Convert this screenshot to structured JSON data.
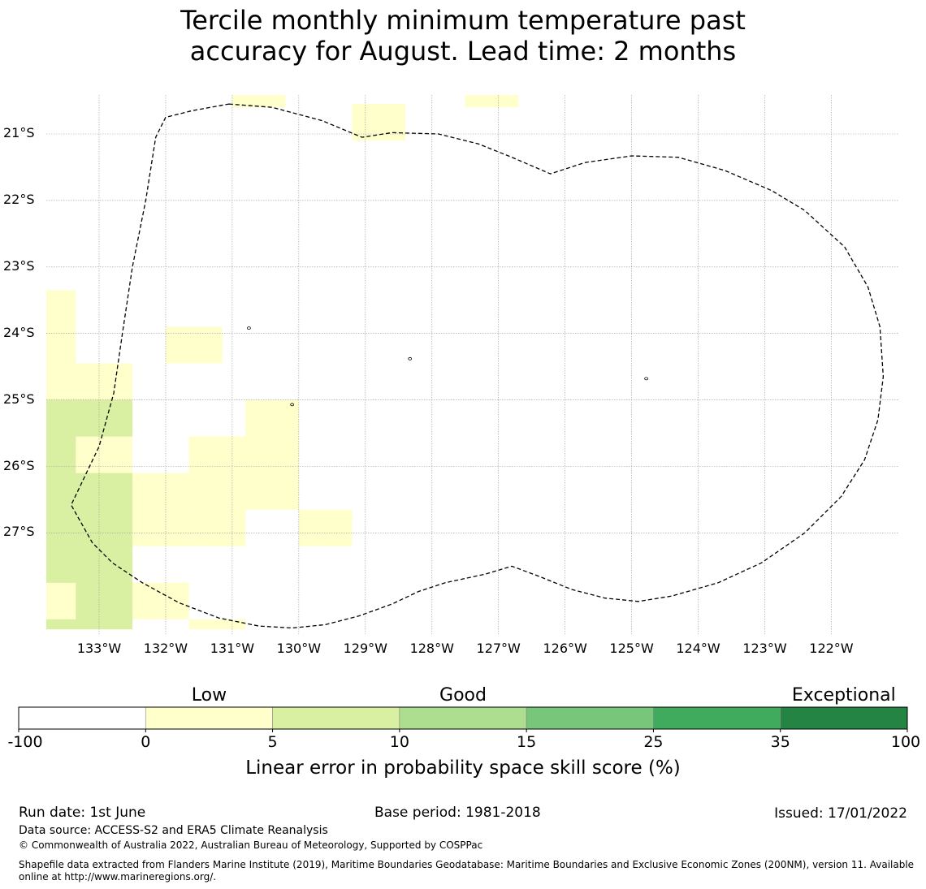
{
  "title": {
    "line1": "Tercile monthly minimum temperature past",
    "line2": "accuracy for August. Lead time: 2 months"
  },
  "map": {
    "latitude_labels": [
      "21°S",
      "22°S",
      "23°S",
      "24°S",
      "25°S",
      "26°S",
      "27°S"
    ],
    "longitude_labels": [
      "133°W",
      "132°W",
      "131°W",
      "130°W",
      "129°W",
      "128°W",
      "127°W",
      "126°W",
      "125°W",
      "124°W",
      "123°W",
      "122°W"
    ],
    "cells": [
      {
        "lon": [
          -131.0,
          -130.2
        ],
        "lat": [
          -20.6,
          -20.2
        ],
        "value": 2.5
      },
      {
        "lon": [
          -129.2,
          -128.4
        ],
        "lat": [
          -21.1,
          -20.55
        ],
        "value": 2.5
      },
      {
        "lon": [
          -127.5,
          -126.7
        ],
        "lat": [
          -20.6,
          -20.2
        ],
        "value": 2.5
      },
      {
        "lon": [
          -133.8,
          -133.35
        ],
        "lat": [
          -24.45,
          -23.35
        ],
        "value": 2.5
      },
      {
        "lon": [
          -133.8,
          -132.5
        ],
        "lat": [
          -25.0,
          -24.45
        ],
        "value": 2.5
      },
      {
        "lon": [
          -132.0,
          -131.15
        ],
        "lat": [
          -24.45,
          -23.9
        ],
        "value": 2.5
      },
      {
        "lon": [
          -130.8,
          -130.0
        ],
        "lat": [
          -25.55,
          -25.0
        ],
        "value": 2.5
      },
      {
        "lon": [
          -131.65,
          -130.0
        ],
        "lat": [
          -26.65,
          -25.55
        ],
        "value": 2.5
      },
      {
        "lon": [
          -132.5,
          -131.65
        ],
        "lat": [
          -27.2,
          -26.1
        ],
        "value": 2.5
      },
      {
        "lon": [
          -131.65,
          -130.8
        ],
        "lat": [
          -27.2,
          -26.65
        ],
        "value": 2.5
      },
      {
        "lon": [
          -130.0,
          -129.2
        ],
        "lat": [
          -27.2,
          -26.65
        ],
        "value": 2.5
      },
      {
        "lon": [
          -133.8,
          -132.5
        ],
        "lat": [
          -28.45,
          -25.0
        ],
        "value": 7.5
      },
      {
        "lon": [
          -133.35,
          -132.5
        ],
        "lat": [
          -26.1,
          -25.55
        ],
        "value": 2.5
      },
      {
        "lon": [
          -133.8,
          -133.35
        ],
        "lat": [
          -28.3,
          -27.75
        ],
        "value": 2.5
      },
      {
        "lon": [
          -132.5,
          -131.65
        ],
        "lat": [
          -28.3,
          -27.75
        ],
        "value": 2.5
      },
      {
        "lon": [
          -131.65,
          -130.8
        ],
        "lat": [
          -28.45,
          -28.3
        ],
        "value": 2.5
      }
    ],
    "eez_boundary": [
      [
        -131.05,
        -20.55
      ],
      [
        -130.4,
        -20.6
      ],
      [
        -129.65,
        -20.8
      ],
      [
        -129.05,
        -21.05
      ],
      [
        -128.6,
        -20.98
      ],
      [
        -127.9,
        -21.0
      ],
      [
        -127.3,
        -21.15
      ],
      [
        -126.8,
        -21.35
      ],
      [
        -126.22,
        -21.6
      ],
      [
        -125.7,
        -21.43
      ],
      [
        -125.0,
        -21.33
      ],
      [
        -124.3,
        -21.35
      ],
      [
        -123.6,
        -21.55
      ],
      [
        -122.9,
        -21.85
      ],
      [
        -122.4,
        -22.15
      ],
      [
        -121.8,
        -22.7
      ],
      [
        -121.45,
        -23.3
      ],
      [
        -121.27,
        -23.9
      ],
      [
        -121.22,
        -24.65
      ],
      [
        -121.3,
        -25.3
      ],
      [
        -121.5,
        -25.9
      ],
      [
        -121.85,
        -26.45
      ],
      [
        -122.4,
        -27.0
      ],
      [
        -123.05,
        -27.45
      ],
      [
        -123.7,
        -27.75
      ],
      [
        -124.4,
        -27.95
      ],
      [
        -124.9,
        -28.03
      ],
      [
        -125.4,
        -27.98
      ],
      [
        -125.9,
        -27.85
      ],
      [
        -126.4,
        -27.65
      ],
      [
        -126.8,
        -27.5
      ],
      [
        -127.2,
        -27.62
      ],
      [
        -127.8,
        -27.75
      ],
      [
        -128.2,
        -27.88
      ],
      [
        -128.6,
        -28.07
      ],
      [
        -129.1,
        -28.25
      ],
      [
        -129.6,
        -28.38
      ],
      [
        -130.1,
        -28.43
      ],
      [
        -130.6,
        -28.4
      ],
      [
        -131.2,
        -28.28
      ],
      [
        -131.8,
        -28.05
      ],
      [
        -132.35,
        -27.75
      ],
      [
        -132.8,
        -27.45
      ],
      [
        -133.1,
        -27.15
      ],
      [
        -133.42,
        -26.58
      ],
      [
        -133.0,
        -25.7
      ],
      [
        -132.78,
        -24.9
      ],
      [
        -132.65,
        -24.0
      ],
      [
        -132.5,
        -23.0
      ],
      [
        -132.3,
        -22.0
      ],
      [
        -132.15,
        -21.05
      ],
      [
        -132.0,
        -20.75
      ],
      [
        -131.6,
        -20.65
      ],
      [
        -131.05,
        -20.55
      ]
    ],
    "islands": [
      {
        "lon": -128.33,
        "lat": -24.38
      },
      {
        "lon": -130.75,
        "lat": -23.92
      },
      {
        "lon": -130.1,
        "lat": -25.07
      },
      {
        "lon": -124.78,
        "lat": -24.68
      }
    ]
  },
  "colorbar": {
    "categories": [
      {
        "label": "Low",
        "at": 1
      },
      {
        "label": "Good",
        "at": 3
      },
      {
        "label": "Exceptional",
        "at": 6
      }
    ],
    "ticks": [
      "-100",
      "0",
      "5",
      "10",
      "15",
      "25",
      "35",
      "100"
    ],
    "colors": [
      "#ffffff",
      "#ffffcc",
      "#d9f0a3",
      "#addd8e",
      "#78c679",
      "#41ab5d",
      "#238443"
    ],
    "title": "Linear error in probability space skill score (%)"
  },
  "footer": {
    "run_date": "Run date: 1st June",
    "base_period": "Base period: 1981-2018",
    "issued": "Issued: 17/01/2022",
    "data_source": "Data source: ACCESS-S2 and ERA5 Climate Reanalysis",
    "copyright": "© Commonwealth of Australia 2022, Australian Bureau of Meteorology, Supported by COSPPac",
    "shapefile_line1": "Shapefile data extracted from Flanders Marine Institute (2019), Maritime Boundaries Geodatabase: Maritime Boundaries and Exclusive Economic Zones (200NM), version 11. Available",
    "shapefile_line2": "online at http://www.marineregions.org/."
  }
}
